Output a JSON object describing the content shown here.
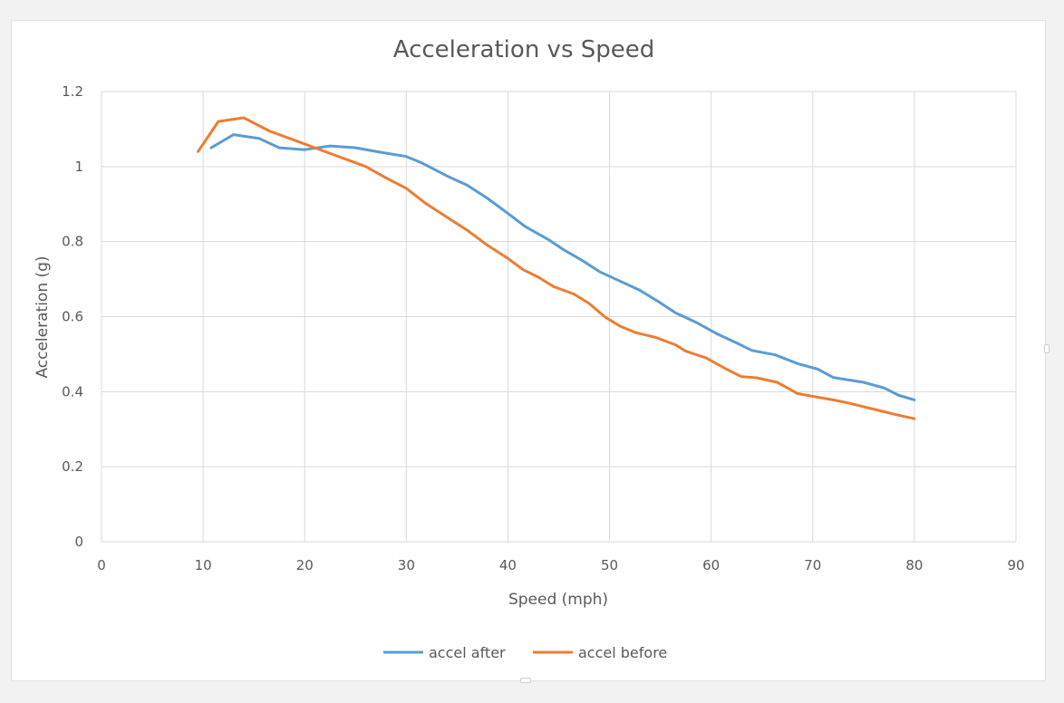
{
  "chart_data": {
    "type": "line",
    "title": "Acceleration vs Speed",
    "xlabel": "Speed (mph)",
    "ylabel": "Acceleration (g)",
    "xlim": [
      0,
      90
    ],
    "ylim": [
      0,
      1.2
    ],
    "x_ticks": [
      0,
      10,
      20,
      30,
      40,
      50,
      60,
      70,
      80,
      90
    ],
    "y_ticks": [
      0,
      0.2,
      0.4,
      0.6,
      0.8,
      1,
      1.2
    ],
    "grid": true,
    "legend_position": "bottom",
    "series": [
      {
        "name": "accel after",
        "color": "#5b9bd5",
        "points": [
          [
            10.8,
            1.05
          ],
          [
            13,
            1.085
          ],
          [
            15.5,
            1.075
          ],
          [
            17.5,
            1.05
          ],
          [
            20,
            1.045
          ],
          [
            22.5,
            1.055
          ],
          [
            25,
            1.05
          ],
          [
            27.5,
            1.038
          ],
          [
            30,
            1.027
          ],
          [
            31.5,
            1.01
          ],
          [
            34,
            0.975
          ],
          [
            36,
            0.95
          ],
          [
            38,
            0.915
          ],
          [
            40,
            0.875
          ],
          [
            41.7,
            0.84
          ],
          [
            44,
            0.805
          ],
          [
            45.5,
            0.778
          ],
          [
            47.3,
            0.75
          ],
          [
            49,
            0.72
          ],
          [
            51,
            0.695
          ],
          [
            53,
            0.67
          ],
          [
            54.8,
            0.64
          ],
          [
            56.5,
            0.61
          ],
          [
            58.5,
            0.585
          ],
          [
            60.5,
            0.555
          ],
          [
            62.5,
            0.53
          ],
          [
            64,
            0.51
          ],
          [
            66.3,
            0.498
          ],
          [
            68.5,
            0.475
          ],
          [
            70.5,
            0.46
          ],
          [
            72,
            0.438
          ],
          [
            75,
            0.425
          ],
          [
            77,
            0.41
          ],
          [
            78.5,
            0.39
          ],
          [
            80,
            0.378
          ]
        ]
      },
      {
        "name": "accel before",
        "color": "#ed7d31",
        "points": [
          [
            9.5,
            1.04
          ],
          [
            11.5,
            1.12
          ],
          [
            14,
            1.13
          ],
          [
            16.5,
            1.095
          ],
          [
            19,
            1.07
          ],
          [
            21,
            1.05
          ],
          [
            23.5,
            1.025
          ],
          [
            26,
            1.0
          ],
          [
            28,
            0.97
          ],
          [
            30,
            0.942
          ],
          [
            32,
            0.9
          ],
          [
            34,
            0.865
          ],
          [
            36,
            0.83
          ],
          [
            38,
            0.79
          ],
          [
            40,
            0.755
          ],
          [
            41.5,
            0.725
          ],
          [
            43,
            0.705
          ],
          [
            44.5,
            0.68
          ],
          [
            46.5,
            0.66
          ],
          [
            48,
            0.635
          ],
          [
            49.5,
            0.6
          ],
          [
            51,
            0.575
          ],
          [
            52.5,
            0.558
          ],
          [
            54.5,
            0.545
          ],
          [
            56.5,
            0.525
          ],
          [
            57.5,
            0.508
          ],
          [
            59.5,
            0.49
          ],
          [
            61.5,
            0.46
          ],
          [
            63,
            0.44
          ],
          [
            64.5,
            0.437
          ],
          [
            66.5,
            0.425
          ],
          [
            67.5,
            0.41
          ],
          [
            68.5,
            0.395
          ],
          [
            70.5,
            0.385
          ],
          [
            72,
            0.378
          ],
          [
            73.5,
            0.37
          ],
          [
            75,
            0.36
          ],
          [
            76.5,
            0.35
          ],
          [
            78,
            0.34
          ],
          [
            80,
            0.328
          ]
        ]
      }
    ]
  }
}
